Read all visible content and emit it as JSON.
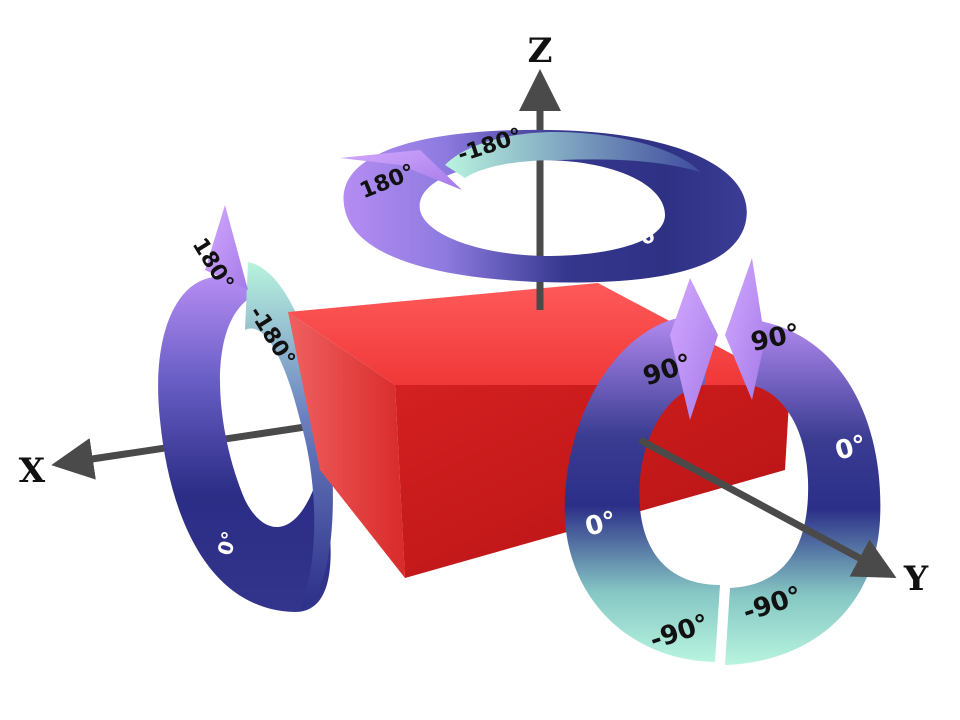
{
  "axes": {
    "x": "X",
    "y": "Y",
    "z": "Z"
  },
  "rings": {
    "z_ring": {
      "start": "-180°",
      "end": "180°",
      "middle": "0°"
    },
    "x_ring": {
      "start": "-180°",
      "end": "180°",
      "middle": "0°"
    },
    "y_ring": {
      "left_top": "90°",
      "left_mid": "0°",
      "left_bottom": "-90°",
      "right_top": "90°",
      "right_mid": "0°",
      "right_bottom": "-90°"
    }
  },
  "colors": {
    "box_front": "#c8191b",
    "box_top": "#ff4a4a",
    "box_side": "#e0302f",
    "ring_dark": "#2b2d86",
    "ring_mid": "#7d6fd6",
    "ring_light": "#b48cf0",
    "ring_mint": "#b6f3dc",
    "axis": "#4a4a4a"
  }
}
